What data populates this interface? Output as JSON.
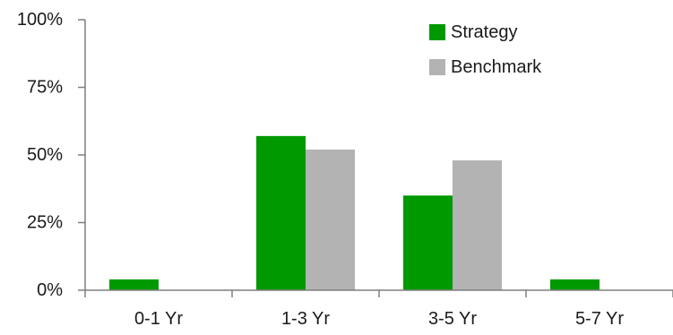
{
  "chart_data": {
    "type": "bar",
    "title": "",
    "xlabel": "",
    "ylabel": "",
    "categories": [
      "0-1 Yr",
      "1-3 Yr",
      "3-5 Yr",
      "5-7 Yr"
    ],
    "series": [
      {
        "name": "Strategy",
        "color": "#009900",
        "values": [
          4,
          57,
          35,
          4
        ]
      },
      {
        "name": "Benchmark",
        "color": "#b3b3b3",
        "values": [
          0,
          52,
          48,
          0
        ]
      }
    ],
    "ylim": [
      0,
      100
    ],
    "yticks": [
      0,
      25,
      50,
      75,
      100
    ],
    "ytick_labels": [
      "0%",
      "25%",
      "50%",
      "75%",
      "100%"
    ],
    "legend_position": "top-right",
    "grid": false
  }
}
